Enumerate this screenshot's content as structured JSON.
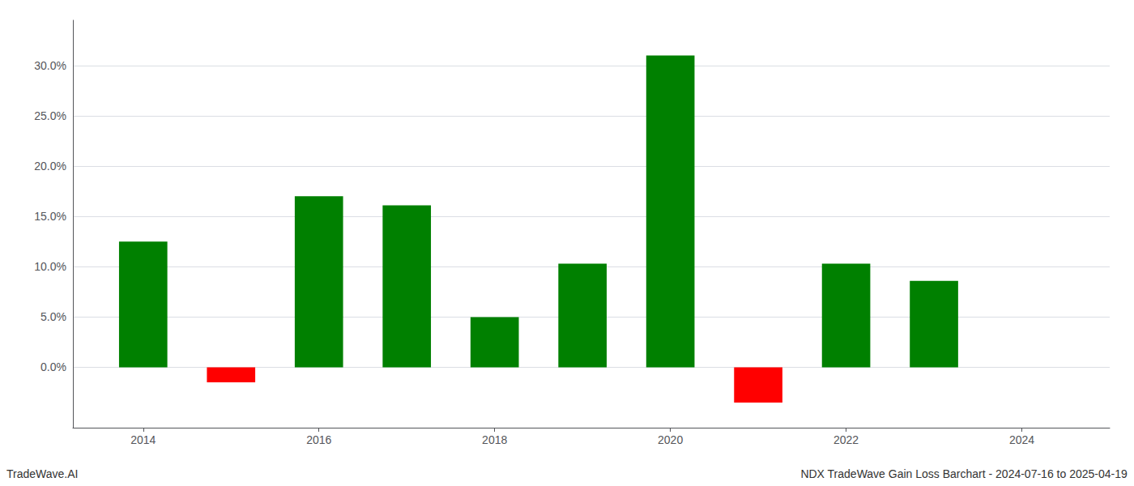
{
  "chart_data": {
    "type": "bar",
    "x": [
      2014,
      2015,
      2016,
      2017,
      2018,
      2019,
      2020,
      2021,
      2022,
      2023
    ],
    "values": [
      0.125,
      -0.015,
      0.17,
      0.161,
      0.05,
      0.103,
      0.31,
      -0.035,
      0.103,
      0.086
    ],
    "colors": [
      "#008000",
      "#ff0000",
      "#008000",
      "#008000",
      "#008000",
      "#008000",
      "#008000",
      "#ff0000",
      "#008000",
      "#008000"
    ],
    "xlim": [
      2013.2,
      2025.0
    ],
    "xticks": [
      2014,
      2016,
      2018,
      2020,
      2022,
      2024
    ],
    "ylim": [
      -0.06,
      0.345
    ],
    "yticks": [
      {
        "value": 0.0,
        "label": "0.0%"
      },
      {
        "value": 0.05,
        "label": "5.0%"
      },
      {
        "value": 0.1,
        "label": "10.0%"
      },
      {
        "value": 0.15,
        "label": "15.0%"
      },
      {
        "value": 0.2,
        "label": "20.0%"
      },
      {
        "value": 0.25,
        "label": "25.0%"
      },
      {
        "value": 0.3,
        "label": "30.0%"
      }
    ],
    "grid": true,
    "annotations": [
      "TradeWave.AI",
      "NDX TradeWave Gain Loss Barchart - 2024-07-16 to 2025-04-19"
    ]
  }
}
